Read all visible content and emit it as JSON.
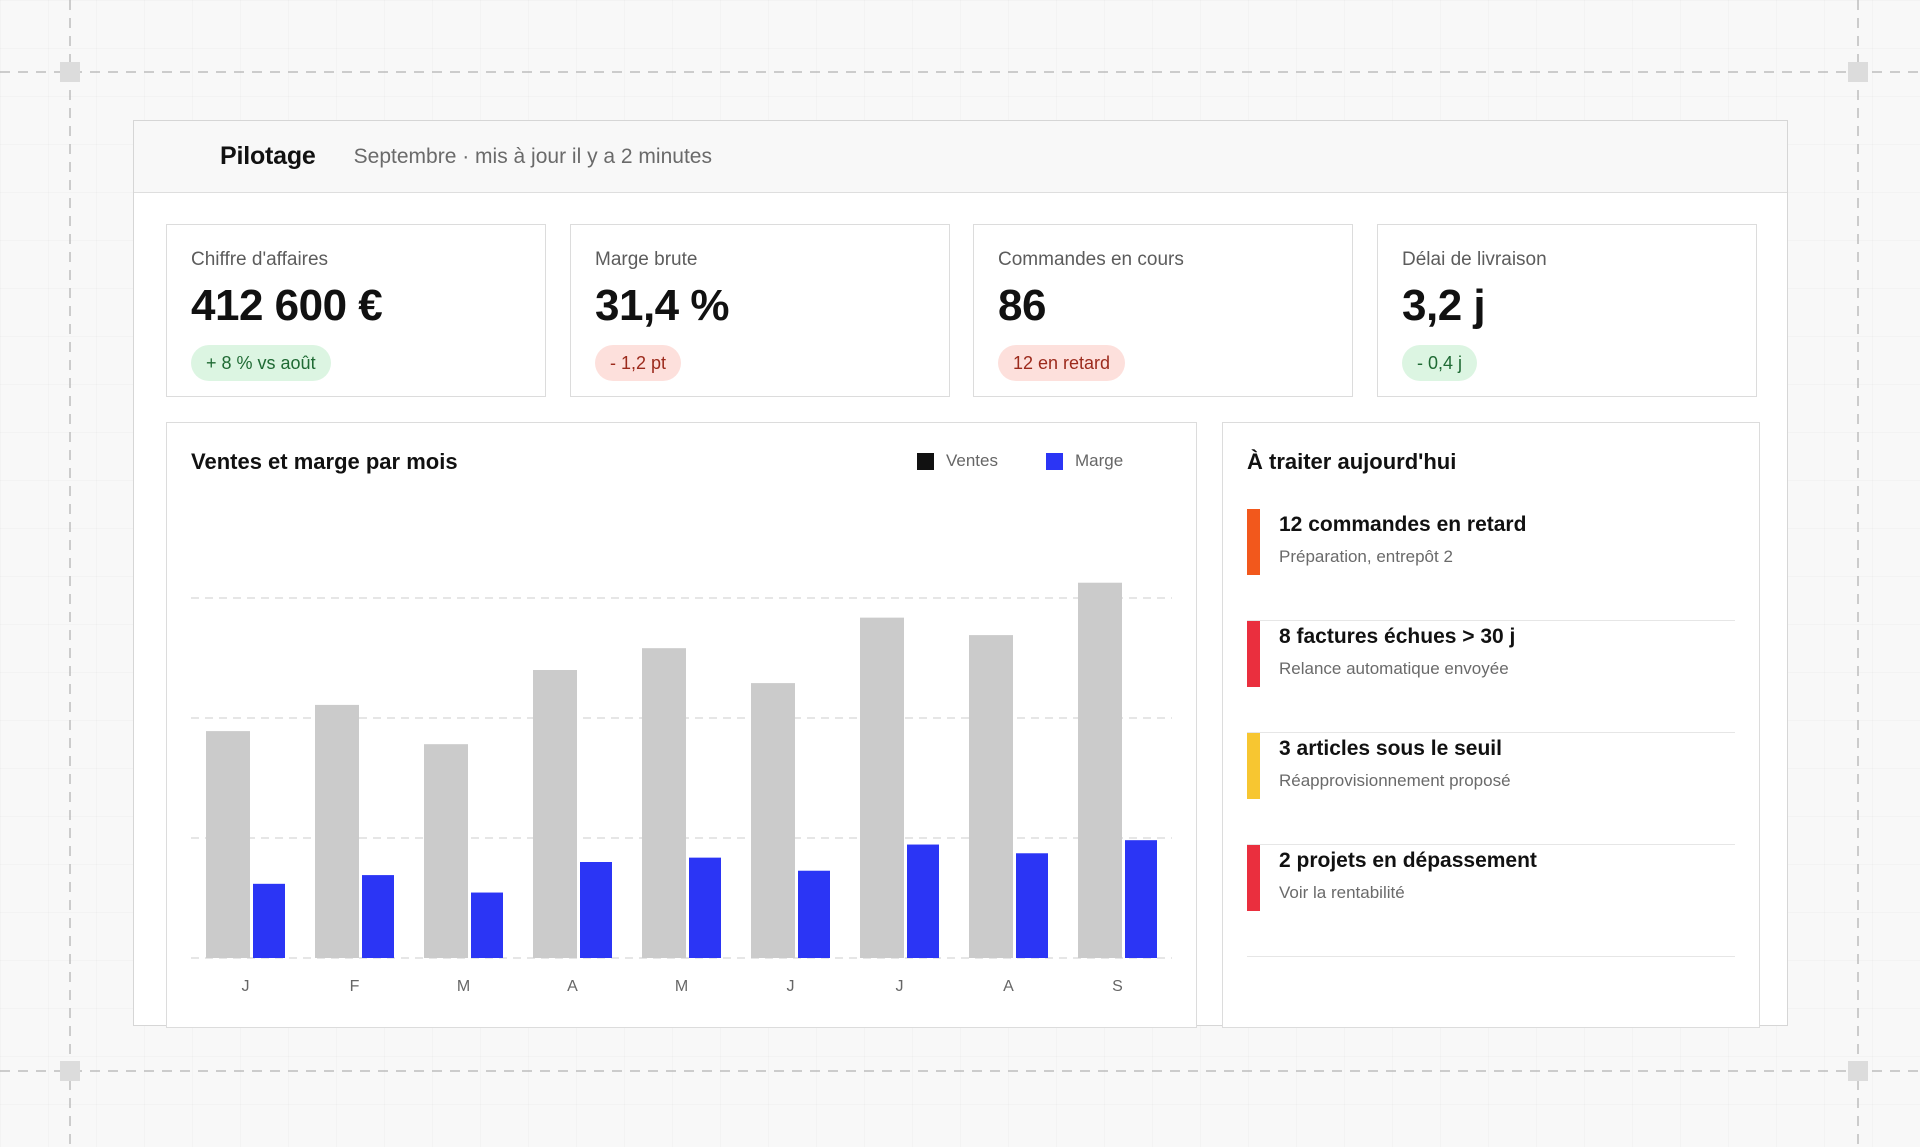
{
  "header": {
    "title": "Pilotage",
    "subtitle": "Septembre · mis à jour il y a 2 minutes"
  },
  "kpis": [
    {
      "label": "Chiffre d'affaires",
      "value": "412 600 €",
      "badge": "+ 8 % vs août",
      "tone": "green"
    },
    {
      "label": "Marge brute",
      "value": "31,4 %",
      "badge": "- 1,2 pt",
      "tone": "red"
    },
    {
      "label": "Commandes en cours",
      "value": "86",
      "badge": "12 en retard",
      "tone": "red"
    },
    {
      "label": "Délai de livraison",
      "value": "3,2 j",
      "badge": "- 0,4 j",
      "tone": "green"
    }
  ],
  "chart_panel": {
    "title": "Ventes et marge par mois"
  },
  "chart_data": {
    "type": "bar",
    "title": "Ventes et marge par mois",
    "categories": [
      "J",
      "F",
      "M",
      "A",
      "M",
      "J",
      "J",
      "A",
      "S"
    ],
    "series": [
      {
        "name": "Ventes",
        "color": "#cbcbcb",
        "legend_color": "#111111",
        "values": [
          260,
          290,
          245,
          330,
          355,
          315,
          390,
          370,
          430
        ]
      },
      {
        "name": "Marge",
        "color": "#2b35f5",
        "legend_color": "#2b35f5",
        "values": [
          85,
          95,
          75,
          110,
          115,
          100,
          130,
          120,
          135
        ]
      }
    ],
    "ylim": [
      0,
      440
    ],
    "gridlines": [
      0,
      137.5,
      275,
      412.5
    ],
    "grid": true,
    "legend_position": "top-right"
  },
  "tasks_panel": {
    "title": "À traiter aujourd'hui",
    "items": [
      {
        "title": "12 commandes en retard",
        "subtitle": "Préparation, entrepôt 2",
        "color": "#f2581c"
      },
      {
        "title": "8 factures échues > 30 j",
        "subtitle": "Relance automatique envoyée",
        "color": "#ea2f3e"
      },
      {
        "title": "3 articles sous le seuil",
        "subtitle": "Réapprovisionnement proposé",
        "color": "#f7c631"
      },
      {
        "title": "2 projets en dépassement",
        "subtitle": "Voir la rentabilité",
        "color": "#ea2f3e"
      }
    ]
  }
}
